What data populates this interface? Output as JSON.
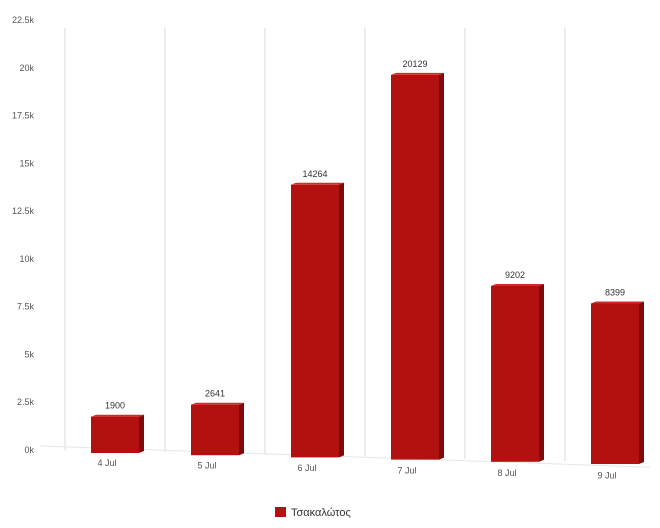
{
  "chart_data": {
    "type": "bar",
    "title": "",
    "xlabel": "",
    "ylabel": "",
    "categories": [
      "4 Jul",
      "5 Jul",
      "6 Jul",
      "7 Jul",
      "8 Jul",
      "9 Jul"
    ],
    "series": [
      {
        "name": "Τσακαλώτος",
        "values": [
          1900,
          2641,
          14264,
          20129,
          9202,
          8399
        ],
        "color": "#b31010"
      }
    ],
    "yticks": [
      "0k",
      "2.5k",
      "5k",
      "7.5k",
      "10k",
      "12.5k",
      "15k",
      "17.5k",
      "20k",
      "22.5k"
    ],
    "ylim": [
      0,
      22500
    ],
    "grid": true,
    "legend_position": "bottom-center",
    "data_labels": true
  }
}
